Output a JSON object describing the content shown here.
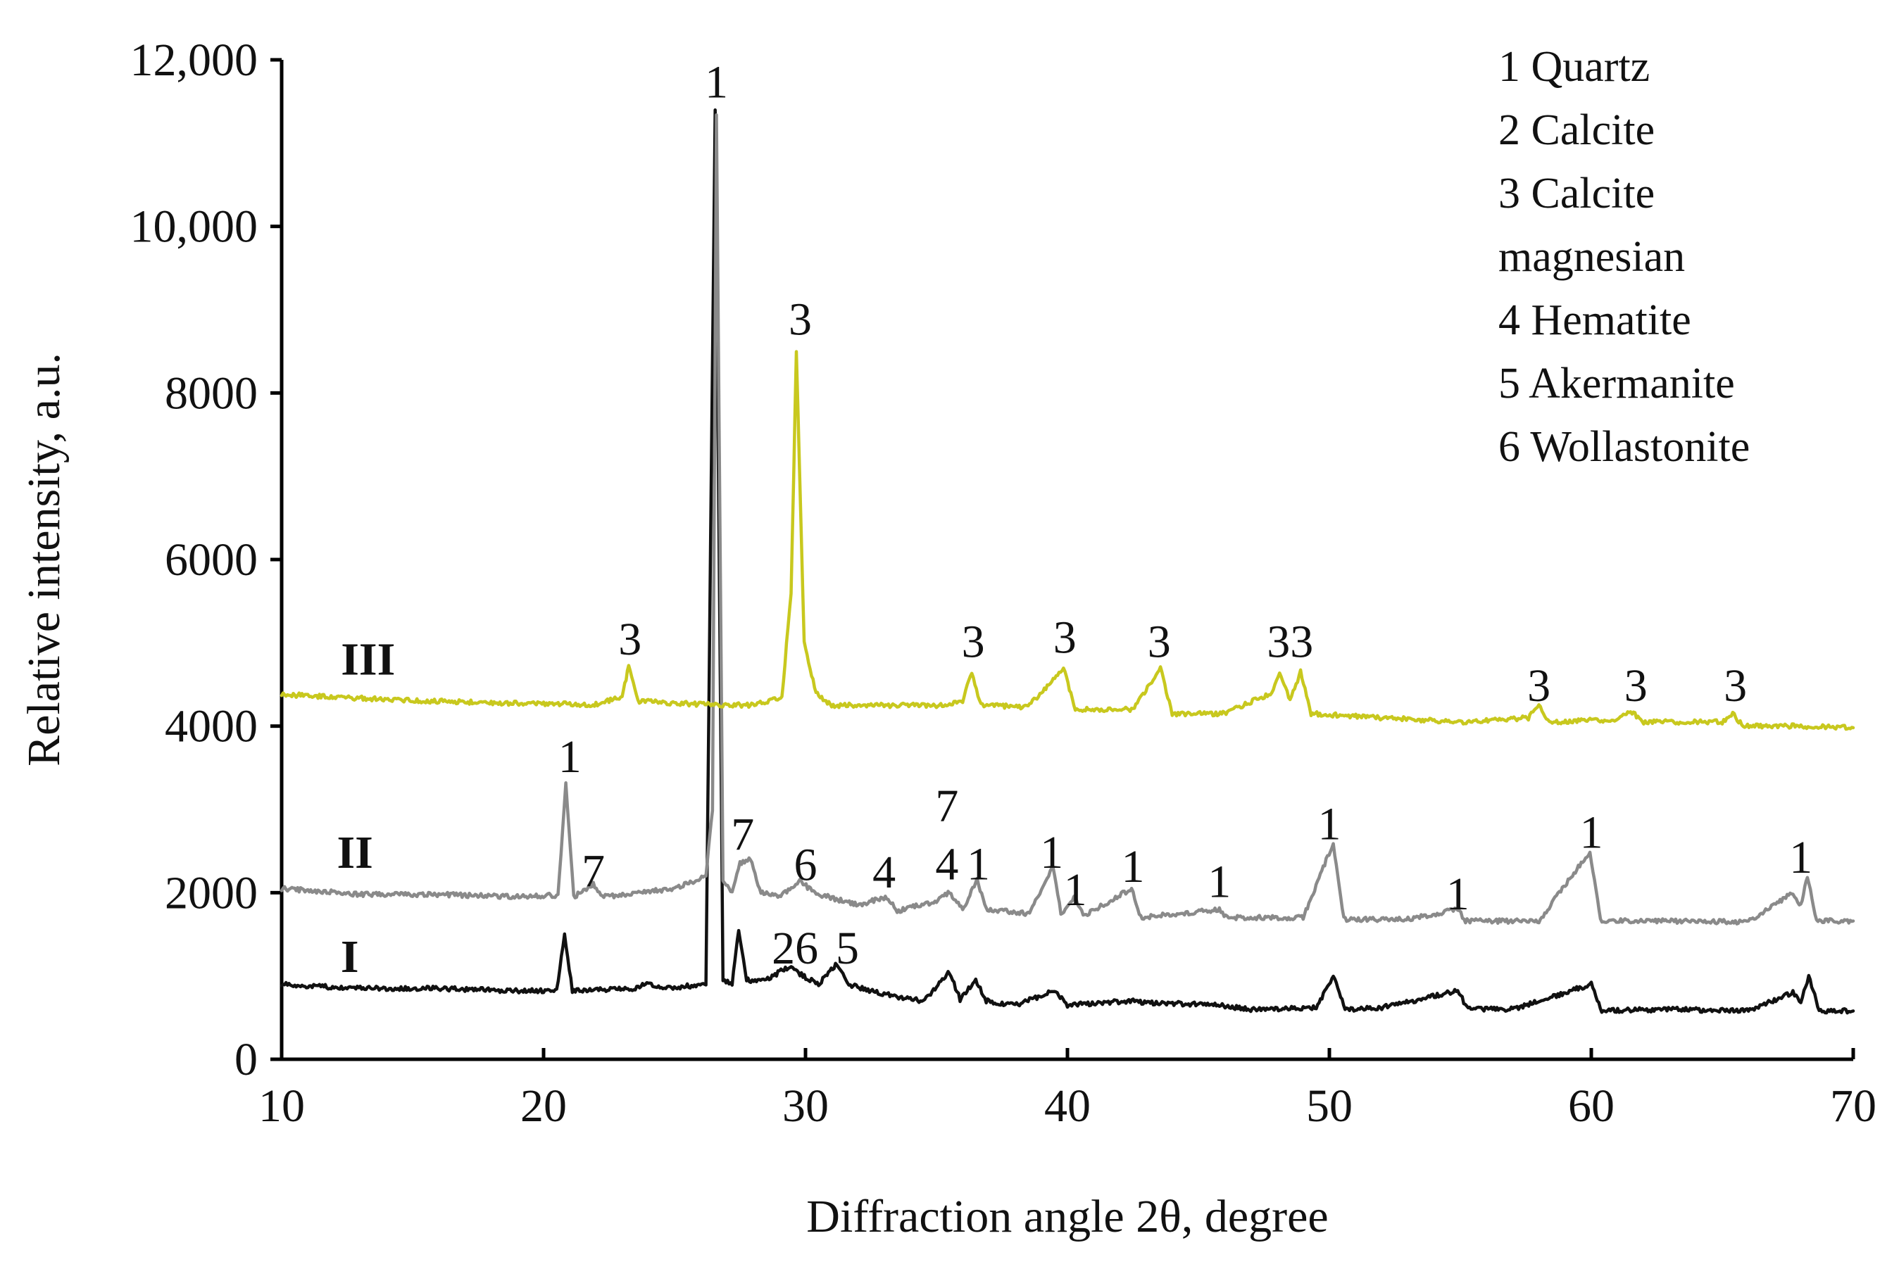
{
  "chart_data": {
    "type": "line",
    "xlabel": "Diffraction angle 2θ, degree",
    "ylabel": "Relative intensity, a.u.",
    "xlim": [
      10,
      70
    ],
    "ylim": [
      0,
      12000
    ],
    "x_ticks": [
      "10",
      "20",
      "30",
      "40",
      "50",
      "60",
      "70"
    ],
    "y_ticks": [
      "0",
      "2000",
      "4000",
      "6000",
      "8000",
      "10,000",
      "12,000"
    ],
    "legend_placement": "top-right",
    "legend": [
      "1 Quartz",
      "2 Calcite",
      "3 Calcite",
      "magnesian",
      "4 Hematite",
      "5 Akermanite",
      "6 Wollastonite"
    ],
    "series": [
      {
        "name": "I",
        "color": "#111111",
        "points": [
          [
            10,
            900
          ],
          [
            13,
            850
          ],
          [
            16,
            850
          ],
          [
            19,
            820
          ],
          [
            20.5,
            820
          ],
          [
            20.8,
            1500
          ],
          [
            21.1,
            820
          ],
          [
            23.5,
            850
          ],
          [
            24,
            920
          ],
          [
            24.5,
            850
          ],
          [
            26.2,
            900
          ],
          [
            26.55,
            11400
          ],
          [
            26.85,
            950
          ],
          [
            27.2,
            900
          ],
          [
            27.45,
            1550
          ],
          [
            27.75,
            950
          ],
          [
            28.5,
            950
          ],
          [
            29.4,
            1120
          ],
          [
            29.9,
            1000
          ],
          [
            30.5,
            900
          ],
          [
            31.2,
            1150
          ],
          [
            31.6,
            900
          ],
          [
            33,
            780
          ],
          [
            34.5,
            700
          ],
          [
            35.5,
            1050
          ],
          [
            35.9,
            720
          ],
          [
            36.5,
            950
          ],
          [
            36.9,
            700
          ],
          [
            38,
            650
          ],
          [
            39.5,
            820
          ],
          [
            40,
            650
          ],
          [
            42.4,
            700
          ],
          [
            43,
            680
          ],
          [
            45.8,
            650
          ],
          [
            47,
            600
          ],
          [
            49.5,
            620
          ],
          [
            50.15,
            1000
          ],
          [
            50.6,
            600
          ],
          [
            52,
            620
          ],
          [
            54.9,
            820
          ],
          [
            55.3,
            600
          ],
          [
            57,
            600
          ],
          [
            60,
            900
          ],
          [
            60.4,
            580
          ],
          [
            63,
            600
          ],
          [
            66,
            580
          ],
          [
            67.7,
            800
          ],
          [
            68,
            700
          ],
          [
            68.3,
            1000
          ],
          [
            68.7,
            580
          ],
          [
            70,
            580
          ]
        ]
      },
      {
        "name": "II",
        "color": "#8a8a8a",
        "points": [
          [
            10,
            2050
          ],
          [
            13,
            1980
          ],
          [
            16,
            1980
          ],
          [
            19,
            1950
          ],
          [
            20.55,
            1970
          ],
          [
            20.85,
            3300
          ],
          [
            21.15,
            1950
          ],
          [
            21.9,
            2100
          ],
          [
            22.3,
            1950
          ],
          [
            25,
            2050
          ],
          [
            26.2,
            2200
          ],
          [
            26.45,
            3000
          ],
          [
            26.6,
            11350
          ],
          [
            26.85,
            2150
          ],
          [
            27.2,
            2000
          ],
          [
            27.5,
            2350
          ],
          [
            27.9,
            2400
          ],
          [
            28.3,
            2000
          ],
          [
            29,
            1950
          ],
          [
            29.8,
            2150
          ],
          [
            30.3,
            2000
          ],
          [
            32,
            1850
          ],
          [
            33.1,
            1950
          ],
          [
            33.5,
            1780
          ],
          [
            35,
            1900
          ],
          [
            35.5,
            2000
          ],
          [
            36,
            1800
          ],
          [
            36.55,
            2150
          ],
          [
            36.9,
            1800
          ],
          [
            38.5,
            1750
          ],
          [
            39.45,
            2300
          ],
          [
            39.75,
            1750
          ],
          [
            40.3,
            1950
          ],
          [
            40.6,
            1720
          ],
          [
            42.45,
            2050
          ],
          [
            42.8,
            1700
          ],
          [
            45.8,
            1800
          ],
          [
            46.1,
            1700
          ],
          [
            49,
            1700
          ],
          [
            50.15,
            2600
          ],
          [
            50.55,
            1680
          ],
          [
            53,
            1680
          ],
          [
            54.9,
            1800
          ],
          [
            55.2,
            1660
          ],
          [
            58,
            1660
          ],
          [
            59.95,
            2500
          ],
          [
            60.35,
            1660
          ],
          [
            63,
            1660
          ],
          [
            66,
            1650
          ],
          [
            67.7,
            2000
          ],
          [
            68,
            1850
          ],
          [
            68.25,
            2200
          ],
          [
            68.6,
            1660
          ],
          [
            70,
            1660
          ]
        ]
      },
      {
        "name": "III",
        "color": "#c8c81e",
        "points": [
          [
            10,
            4380
          ],
          [
            14,
            4320
          ],
          [
            18,
            4280
          ],
          [
            22,
            4260
          ],
          [
            23,
            4350
          ],
          [
            23.25,
            4720
          ],
          [
            23.6,
            4300
          ],
          [
            26,
            4260
          ],
          [
            28,
            4250
          ],
          [
            29.1,
            4350
          ],
          [
            29.45,
            5600
          ],
          [
            29.65,
            8500
          ],
          [
            29.95,
            5000
          ],
          [
            30.4,
            4400
          ],
          [
            31,
            4250
          ],
          [
            33,
            4250
          ],
          [
            35,
            4250
          ],
          [
            36,
            4300
          ],
          [
            36.35,
            4650
          ],
          [
            36.7,
            4250
          ],
          [
            38.5,
            4230
          ],
          [
            39.85,
            4700
          ],
          [
            40.3,
            4200
          ],
          [
            42.5,
            4200
          ],
          [
            43.55,
            4700
          ],
          [
            44,
            4150
          ],
          [
            46,
            4150
          ],
          [
            47.8,
            4400
          ],
          [
            48.1,
            4650
          ],
          [
            48.5,
            4300
          ],
          [
            48.9,
            4650
          ],
          [
            49.3,
            4150
          ],
          [
            52,
            4100
          ],
          [
            55,
            4050
          ],
          [
            57.6,
            4100
          ],
          [
            58,
            4250
          ],
          [
            58.4,
            4050
          ],
          [
            61,
            4080
          ],
          [
            61.5,
            4180
          ],
          [
            62,
            4050
          ],
          [
            65,
            4050
          ],
          [
            65.4,
            4150
          ],
          [
            65.8,
            4000
          ],
          [
            68,
            4000
          ],
          [
            70,
            3980
          ]
        ]
      }
    ],
    "series_labels": [
      {
        "text": "I",
        "x": 12.6,
        "y": 1050
      },
      {
        "text": "II",
        "x": 12.8,
        "y": 2300
      },
      {
        "text": "III",
        "x": 13.3,
        "y": 4620
      }
    ],
    "peak_labels": [
      {
        "text": "1",
        "x": 26.6,
        "y": 11550
      },
      {
        "text": "3",
        "x": 29.8,
        "y": 8700
      },
      {
        "text": "3",
        "x": 23.3,
        "y": 4860
      },
      {
        "text": "3",
        "x": 36.4,
        "y": 4830
      },
      {
        "text": "3",
        "x": 39.9,
        "y": 4880
      },
      {
        "text": "3",
        "x": 43.5,
        "y": 4830
      },
      {
        "text": "33",
        "x": 48.5,
        "y": 4830
      },
      {
        "text": "3",
        "x": 58.0,
        "y": 4300
      },
      {
        "text": "3",
        "x": 61.7,
        "y": 4300
      },
      {
        "text": "3",
        "x": 65.5,
        "y": 4300
      },
      {
        "text": "1",
        "x": 21.0,
        "y": 3450
      },
      {
        "text": "7",
        "x": 21.9,
        "y": 2080
      },
      {
        "text": "7",
        "x": 27.6,
        "y": 2520
      },
      {
        "text": "6",
        "x": 30.0,
        "y": 2150
      },
      {
        "text": "4",
        "x": 33.0,
        "y": 2060
      },
      {
        "text": "7",
        "x": 35.4,
        "y": 2860
      },
      {
        "text": "4",
        "x": 35.4,
        "y": 2160
      },
      {
        "text": "1",
        "x": 36.6,
        "y": 2160
      },
      {
        "text": "1",
        "x": 39.4,
        "y": 2300
      },
      {
        "text": "1",
        "x": 40.3,
        "y": 1850
      },
      {
        "text": "1",
        "x": 42.5,
        "y": 2130
      },
      {
        "text": "1",
        "x": 45.8,
        "y": 1950
      },
      {
        "text": "1",
        "x": 50.0,
        "y": 2640
      },
      {
        "text": "1",
        "x": 54.9,
        "y": 1800
      },
      {
        "text": "1",
        "x": 60.0,
        "y": 2540
      },
      {
        "text": "1",
        "x": 68.0,
        "y": 2240
      },
      {
        "text": "26",
        "x": 29.6,
        "y": 1150
      },
      {
        "text": "5",
        "x": 31.6,
        "y": 1150
      }
    ]
  }
}
